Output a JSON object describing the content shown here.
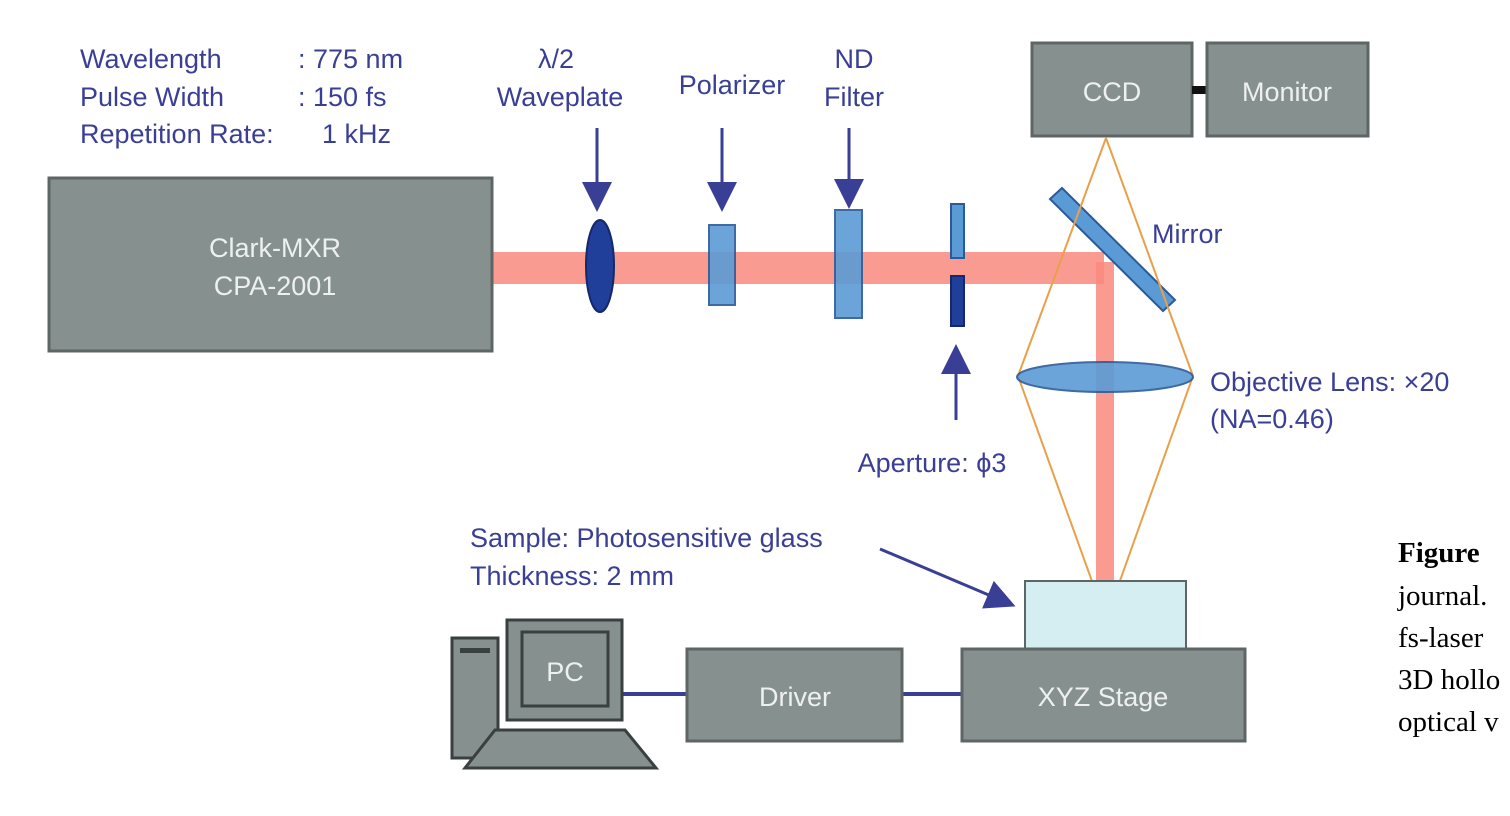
{
  "laser_params": {
    "wavelength_label": "Wavelength",
    "wavelength_value": ": 775 nm",
    "pulse_label": "Pulse Width",
    "pulse_value": ": 150 fs",
    "rep_label": "Repetition Rate:",
    "rep_value": "1 kHz"
  },
  "components": {
    "laser_line1": "Clark-MXR",
    "laser_line2": "CPA-2001",
    "waveplate_line1": "λ/2",
    "waveplate_line2": "Waveplate",
    "polarizer": "Polarizer",
    "nd_line1": "ND",
    "nd_line2": "Filter",
    "ccd": "CCD",
    "monitor": "Monitor",
    "mirror": "Mirror",
    "objective_line1": "Objective Lens: ×20",
    "objective_line2": "(NA=0.46)",
    "aperture": "Aperture: ϕ3",
    "sample_line1": "Sample: Photosensitive glass",
    "sample_line2": "Thickness: 2 mm",
    "pc": "PC",
    "driver": "Driver",
    "stage": "XYZ Stage"
  },
  "caption": {
    "bold": "Figure",
    "line2": "journal.",
    "line3": "fs-laser",
    "line4": "3D hollo",
    "line5": "optical v"
  },
  "colors": {
    "beam": "#f98a7f",
    "box_fill": "#86908f",
    "label_text": "#3a3f96",
    "optic_blue": "#5b9bd5",
    "optic_dark_blue": "#1f3f9a",
    "cone": "#e8a04a",
    "sample_fill": "#d4eef2"
  }
}
